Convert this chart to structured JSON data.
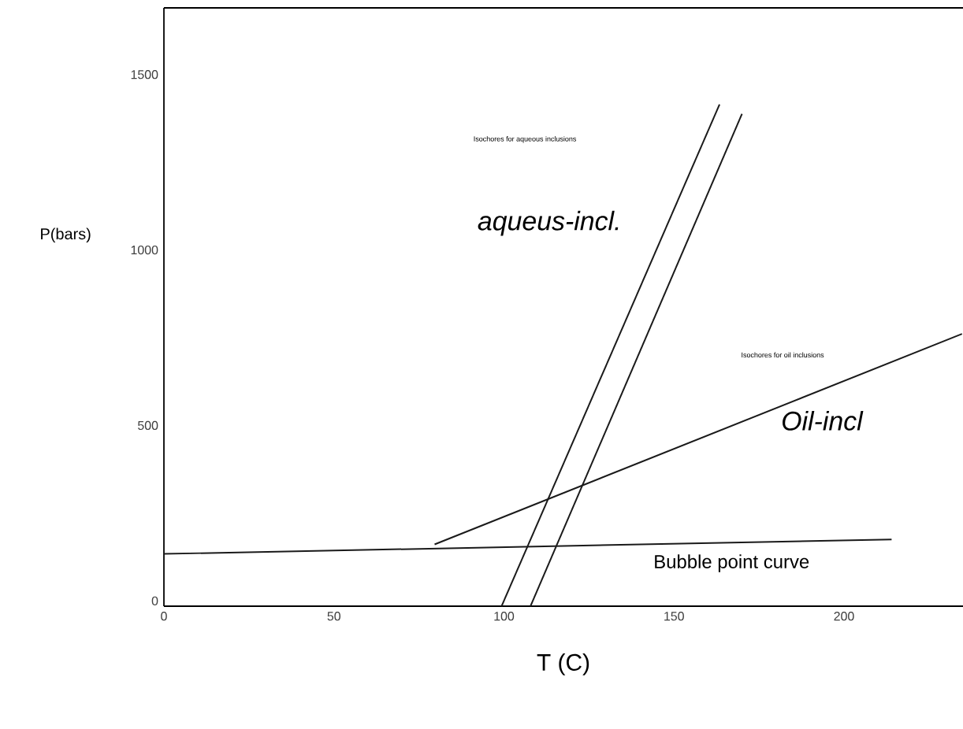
{
  "chart_data": {
    "type": "line",
    "xlabel": "T (C)",
    "ylabel": "P(bars)",
    "xlim": [
      0,
      235
    ],
    "ylim": [
      -15,
      1690
    ],
    "xticks": [
      0,
      50,
      100,
      150,
      200
    ],
    "yticks": [
      0,
      500,
      1000,
      1500
    ],
    "grid": false,
    "legend": false,
    "marker": "none",
    "line_style": "solid",
    "series": [
      {
        "color": "#1a1a1a",
        "x": [
          99.3,
          163.4
        ],
        "values": [
          -15,
          1415
        ]
      },
      {
        "color": "#1a1a1a",
        "x": [
          107.8,
          170
        ],
        "values": [
          -15,
          1388
        ]
      },
      {
        "color": "#1a1a1a",
        "x": [
          79.6,
          234.7
        ],
        "values": [
          161,
          761
        ]
      },
      {
        "name": "Bubble point curve",
        "color": "#1a1a1a",
        "x": [
          0,
          214
        ],
        "values": [
          134,
          175
        ]
      }
    ],
    "annotations": [
      "Isochores for aqueous inclusions",
      "Isochores for oil inclusions",
      "aqueus-incl.",
      "Oil-incl"
    ]
  }
}
